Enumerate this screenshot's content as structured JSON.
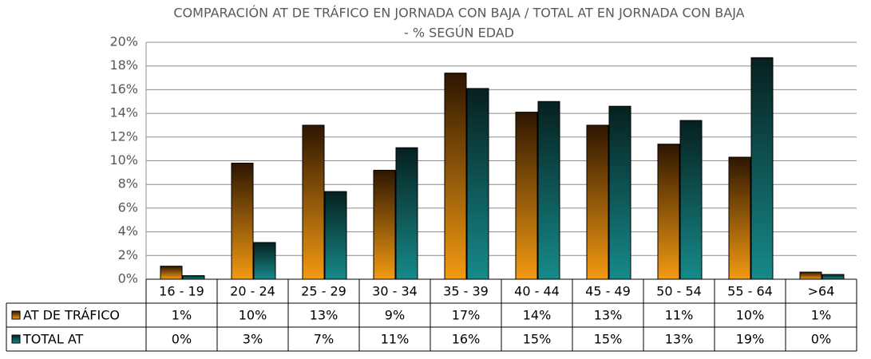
{
  "chart_data": {
    "type": "bar",
    "title": [
      "COMPARACIÓN AT DE TRÁFICO EN JORNADA CON BAJA / TOTAL AT EN JORNADA CON BAJA",
      "- % SEGÚN EDAD"
    ],
    "categories": [
      "16 - 19",
      "20 - 24",
      "25 - 29",
      "30 - 34",
      "35 - 39",
      "40 - 44",
      "45 - 49",
      "50 - 54",
      "55 - 64",
      ">64"
    ],
    "series": [
      {
        "name": "AT DE TRÁFICO",
        "color": "#f39a12",
        "values": [
          1.1,
          9.8,
          13.0,
          9.2,
          17.4,
          14.1,
          13.0,
          11.4,
          10.3,
          0.6
        ],
        "value_labels": [
          "1%",
          "10%",
          "13%",
          "9%",
          "17%",
          "14%",
          "13%",
          "11%",
          "10%",
          "1%"
        ]
      },
      {
        "name": "TOTAL AT",
        "color": "#178a8a",
        "values": [
          0.3,
          3.1,
          7.4,
          11.1,
          16.1,
          15.0,
          14.6,
          13.4,
          18.7,
          0.4
        ],
        "value_labels": [
          "0%",
          "3%",
          "7%",
          "11%",
          "16%",
          "15%",
          "15%",
          "13%",
          "19%",
          "0%"
        ]
      }
    ],
    "ylim": [
      0,
      20
    ],
    "yticks": [
      {
        "value": 0,
        "label": "0%"
      },
      {
        "value": 2,
        "label": "2%"
      },
      {
        "value": 4,
        "label": "4%"
      },
      {
        "value": 6,
        "label": "6%"
      },
      {
        "value": 8,
        "label": "8%"
      },
      {
        "value": 10,
        "label": "10%"
      },
      {
        "value": 12,
        "label": "12%"
      },
      {
        "value": 14,
        "label": "14%"
      },
      {
        "value": 16,
        "label": "16%"
      },
      {
        "value": 18,
        "label": "18%"
      },
      {
        "value": 20,
        "label": "20%"
      }
    ],
    "grid": true
  }
}
